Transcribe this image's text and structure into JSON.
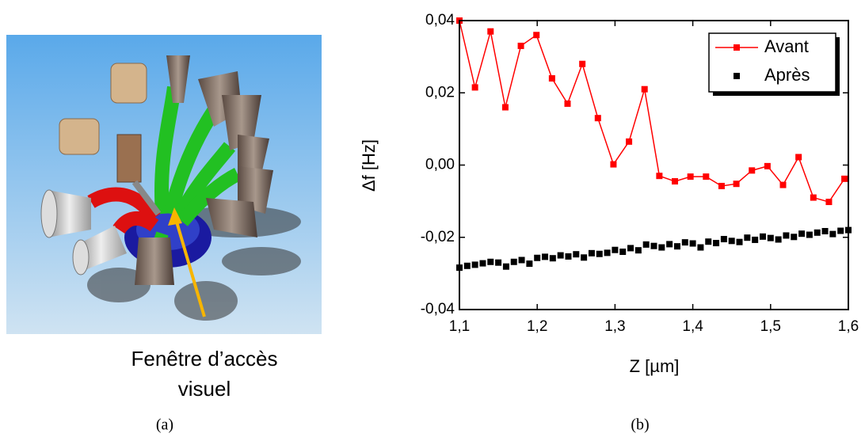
{
  "figure": {
    "annotation_lines": [
      "Fenêtre d’accès",
      "visuel"
    ],
    "panel_labels": [
      "(a)",
      "(b)"
    ]
  },
  "chart_data": {
    "type": "line",
    "xlabel": "Z [µm]",
    "ylabel": "Δf [Hz]",
    "xlim": [
      1.1,
      1.6
    ],
    "xticks": [
      {
        "value": 1.1,
        "label": "1,1"
      },
      {
        "value": 1.2,
        "label": "1,2"
      },
      {
        "value": 1.3,
        "label": "1,3"
      },
      {
        "value": 1.4,
        "label": "1,4"
      },
      {
        "value": 1.5,
        "label": "1,5"
      },
      {
        "value": 1.6,
        "label": "1,6"
      }
    ],
    "ylim": [
      -0.04,
      0.04
    ],
    "yticks": [
      {
        "value": -0.04,
        "label": "-0,04"
      },
      {
        "value": -0.02,
        "label": "-0,02"
      },
      {
        "value": 0,
        "label": "0,00"
      },
      {
        "value": 0.02,
        "label": "0,02"
      },
      {
        "value": 0.04,
        "label": "0,04"
      }
    ],
    "legend": "upper right",
    "series": [
      {
        "name": "Avant",
        "color": "#ff0000",
        "line": true,
        "x": [
          1.1,
          1.12,
          1.14,
          1.159,
          1.179,
          1.199,
          1.219,
          1.239,
          1.258,
          1.278,
          1.298,
          1.318,
          1.338,
          1.357,
          1.377,
          1.397,
          1.417,
          1.437,
          1.456,
          1.476,
          1.496,
          1.516,
          1.536,
          1.555,
          1.575,
          1.595
        ],
        "values": [
          0.04,
          0.0215,
          0.037,
          0.016,
          0.033,
          0.036,
          0.024,
          0.017,
          0.028,
          0.013,
          0.0002,
          0.0065,
          0.021,
          -0.003,
          -0.0045,
          -0.0032,
          -0.0032,
          -0.0058,
          -0.0052,
          -0.0015,
          -0.0003,
          -0.0055,
          0.0022,
          -0.009,
          -0.0102,
          -0.0038
        ]
      },
      {
        "name": "Après",
        "color": "#000000",
        "line": false,
        "x": [
          1.1,
          1.11,
          1.12,
          1.13,
          1.14,
          1.15,
          1.16,
          1.17,
          1.18,
          1.19,
          1.2,
          1.21,
          1.22,
          1.23,
          1.24,
          1.25,
          1.26,
          1.27,
          1.28,
          1.29,
          1.3,
          1.31,
          1.32,
          1.33,
          1.34,
          1.35,
          1.36,
          1.37,
          1.38,
          1.39,
          1.4,
          1.41,
          1.42,
          1.43,
          1.44,
          1.45,
          1.46,
          1.47,
          1.48,
          1.49,
          1.5,
          1.51,
          1.52,
          1.53,
          1.54,
          1.55,
          1.56,
          1.57,
          1.58,
          1.59,
          1.6
        ],
        "values": [
          -0.0284,
          -0.0279,
          -0.0276,
          -0.0272,
          -0.0268,
          -0.027,
          -0.0281,
          -0.0268,
          -0.0263,
          -0.0273,
          -0.0257,
          -0.0254,
          -0.0258,
          -0.025,
          -0.0253,
          -0.0247,
          -0.0256,
          -0.0244,
          -0.0246,
          -0.0243,
          -0.0235,
          -0.024,
          -0.023,
          -0.0236,
          -0.022,
          -0.0224,
          -0.0228,
          -0.0219,
          -0.0225,
          -0.0214,
          -0.0217,
          -0.0228,
          -0.0212,
          -0.0216,
          -0.0205,
          -0.021,
          -0.0213,
          -0.0201,
          -0.0207,
          -0.0198,
          -0.0202,
          -0.0206,
          -0.0195,
          -0.0199,
          -0.019,
          -0.0193,
          -0.0187,
          -0.0183,
          -0.0191,
          -0.0182,
          -0.018
        ]
      }
    ]
  }
}
